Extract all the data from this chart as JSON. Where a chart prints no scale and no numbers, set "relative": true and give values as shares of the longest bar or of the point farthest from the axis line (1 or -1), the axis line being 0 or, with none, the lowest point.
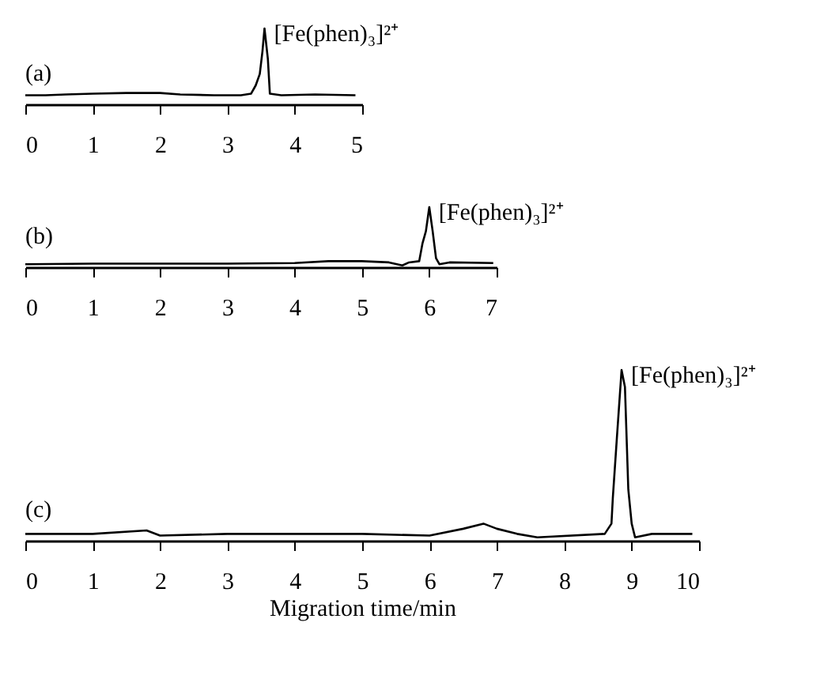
{
  "chart_data": [
    {
      "type": "line",
      "relative": true,
      "xlim": [
        0,
        5
      ],
      "xticks": [
        0,
        1,
        2,
        3,
        4,
        5
      ],
      "annotations": [
        "(a)",
        {
          "text": "[Fe(phen)₃]²⁺",
          "x": 3.55,
          "y": 1.0
        }
      ],
      "series": [
        {
          "color": "#000000",
          "x": [
            0,
            0.3,
            0.6,
            1.0,
            1.5,
            2.0,
            2.3,
            2.8,
            3.2,
            3.35,
            3.42,
            3.48,
            3.52,
            3.55,
            3.6,
            3.63,
            3.8,
            4.3,
            4.9
          ],
          "values": [
            0.12,
            0.12,
            0.13,
            0.14,
            0.15,
            0.15,
            0.13,
            0.12,
            0.12,
            0.14,
            0.25,
            0.4,
            0.7,
            1.0,
            0.6,
            0.14,
            0.12,
            0.13,
            0.12
          ]
        }
      ]
    },
    {
      "type": "line",
      "relative": true,
      "xlim": [
        0,
        7
      ],
      "xticks": [
        0,
        1,
        2,
        3,
        4,
        5,
        6,
        7
      ],
      "annotations": [
        "(b)",
        {
          "text": "[Fe(phen)₃]²⁺",
          "x": 6.0,
          "y": 1.0
        }
      ],
      "series": [
        {
          "color": "#000000",
          "x": [
            0,
            1,
            2,
            3,
            4,
            4.5,
            5.0,
            5.4,
            5.6,
            5.7,
            5.85,
            5.9,
            5.95,
            6.0,
            6.05,
            6.1,
            6.15,
            6.3,
            6.95
          ],
          "values": [
            0.05,
            0.06,
            0.06,
            0.06,
            0.07,
            0.1,
            0.1,
            0.08,
            0.03,
            0.08,
            0.1,
            0.4,
            0.6,
            1.0,
            0.6,
            0.15,
            0.05,
            0.08,
            0.07
          ]
        }
      ]
    },
    {
      "type": "line",
      "relative": true,
      "xlim": [
        0,
        10
      ],
      "xticks": [
        0,
        1,
        2,
        3,
        4,
        5,
        6,
        7,
        8,
        9,
        10
      ],
      "xlabel": "Migration time/min",
      "annotations": [
        "(c)",
        {
          "text": "[Fe(phen)₃]²⁺",
          "x": 8.85,
          "y": 1.0
        }
      ],
      "series": [
        {
          "color": "#000000",
          "x": [
            0,
            1,
            1.8,
            2,
            3,
            4,
            5,
            6,
            6.5,
            6.8,
            7,
            7.3,
            7.6,
            8.6,
            8.7,
            8.72,
            8.78,
            8.85,
            8.9,
            8.95,
            9.0,
            9.05,
            9.3,
            9.9
          ],
          "values": [
            0.04,
            0.04,
            0.06,
            0.03,
            0.04,
            0.04,
            0.04,
            0.03,
            0.07,
            0.1,
            0.07,
            0.04,
            0.02,
            0.04,
            0.1,
            0.25,
            0.6,
            1.0,
            0.9,
            0.3,
            0.1,
            0.02,
            0.04,
            0.04
          ]
        }
      ]
    }
  ]
}
